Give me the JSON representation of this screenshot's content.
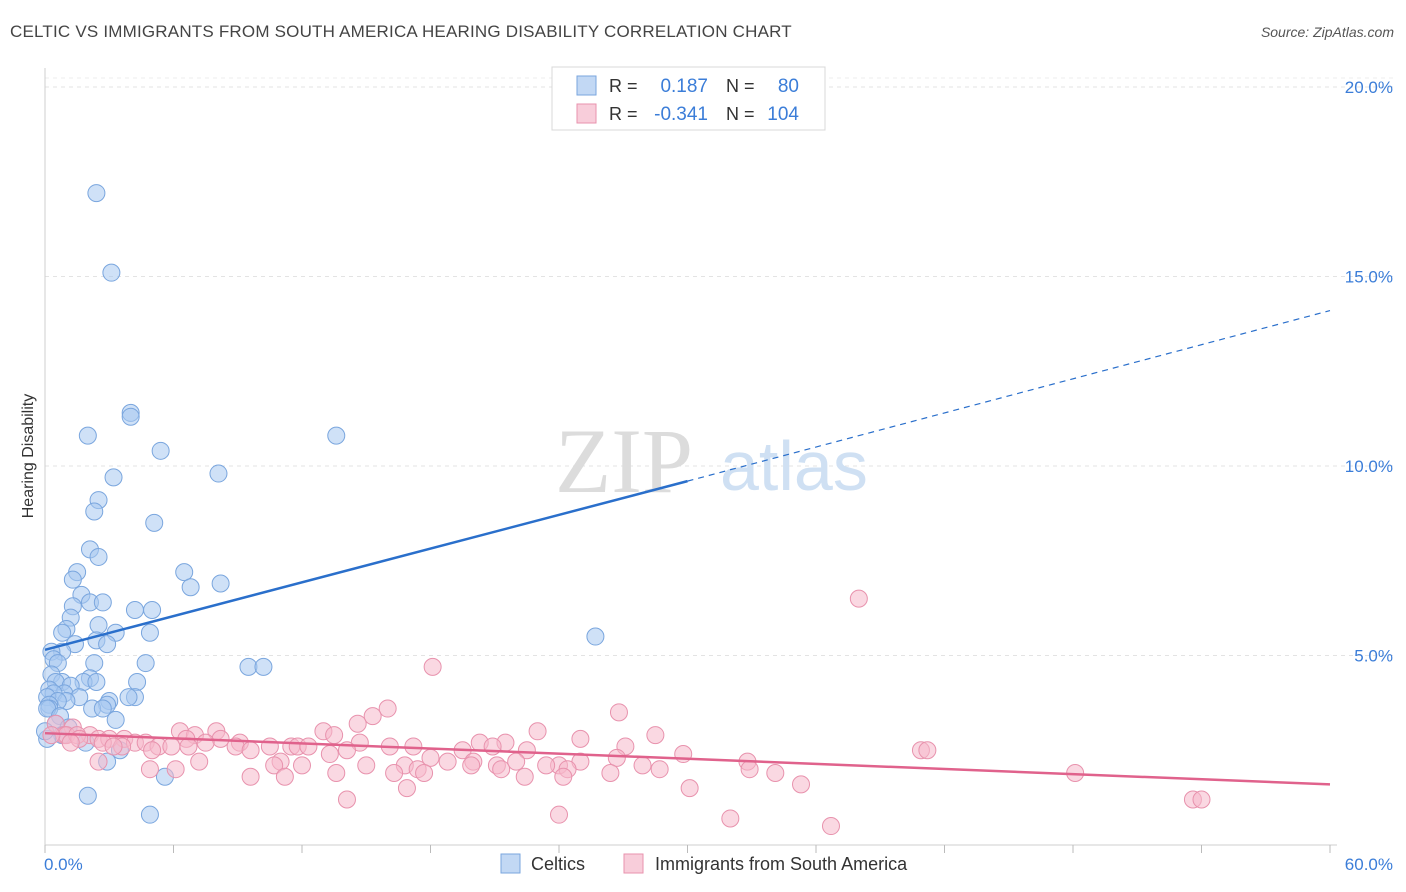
{
  "chart_data": {
    "type": "scatter",
    "title": "CELTIC VS IMMIGRANTS FROM SOUTH AMERICA HEARING DISABILITY CORRELATION CHART",
    "source": "Source: ZipAtlas.com",
    "ylabel": "Hearing Disability",
    "xlabel": "",
    "xlim": [
      0,
      60
    ],
    "ylim": [
      0,
      20.5
    ],
    "x_tick_labels": [
      "0.0%",
      "60.0%"
    ],
    "y_ticks": [
      5,
      10,
      15,
      20
    ],
    "y_tick_labels": [
      "5.0%",
      "10.0%",
      "15.0%",
      "20.0%"
    ],
    "grid": true,
    "watermark": {
      "zip": "ZIP",
      "atlas": "atlas"
    },
    "legend_top": [
      {
        "r_label": "R =",
        "r_value": "0.187",
        "n_label": "N =",
        "n_value": "80",
        "color": "#a8c8f0"
      },
      {
        "r_label": "R =",
        "r_value": "-0.341",
        "n_label": "N =",
        "n_value": "104",
        "color": "#f5b8cb"
      }
    ],
    "series": [
      {
        "name": "Celtics",
        "color": "#a8c8f0",
        "stroke": "#7aa6de",
        "trend_color": "#2a6fcb",
        "trend": {
          "x0": 0,
          "y0": 5.15,
          "x1": 30,
          "y1": 9.6,
          "x_end": 60,
          "y_end": 14.1
        },
        "points": [
          [
            2.4,
            17.2
          ],
          [
            3.1,
            15.1
          ],
          [
            4.0,
            11.4
          ],
          [
            4.0,
            11.3
          ],
          [
            2.0,
            10.8
          ],
          [
            13.6,
            10.8
          ],
          [
            5.4,
            10.4
          ],
          [
            8.1,
            9.8
          ],
          [
            3.2,
            9.7
          ],
          [
            2.5,
            9.1
          ],
          [
            2.3,
            8.8
          ],
          [
            5.1,
            8.5
          ],
          [
            2.1,
            7.8
          ],
          [
            2.5,
            7.6
          ],
          [
            1.5,
            7.2
          ],
          [
            6.5,
            7.2
          ],
          [
            1.3,
            7.0
          ],
          [
            8.2,
            6.9
          ],
          [
            6.8,
            6.8
          ],
          [
            1.7,
            6.6
          ],
          [
            2.1,
            6.4
          ],
          [
            2.7,
            6.4
          ],
          [
            1.3,
            6.3
          ],
          [
            4.2,
            6.2
          ],
          [
            5.0,
            6.2
          ],
          [
            1.2,
            6.0
          ],
          [
            2.5,
            5.8
          ],
          [
            1.0,
            5.7
          ],
          [
            0.8,
            5.6
          ],
          [
            3.3,
            5.6
          ],
          [
            4.9,
            5.6
          ],
          [
            25.7,
            5.5
          ],
          [
            2.4,
            5.4
          ],
          [
            2.9,
            5.3
          ],
          [
            1.4,
            5.3
          ],
          [
            0.8,
            5.1
          ],
          [
            0.3,
            5.1
          ],
          [
            0.4,
            4.9
          ],
          [
            0.6,
            4.8
          ],
          [
            4.7,
            4.8
          ],
          [
            2.3,
            4.8
          ],
          [
            9.5,
            4.7
          ],
          [
            10.2,
            4.7
          ],
          [
            0.3,
            4.5
          ],
          [
            2.1,
            4.4
          ],
          [
            0.8,
            4.3
          ],
          [
            0.5,
            4.3
          ],
          [
            1.8,
            4.3
          ],
          [
            4.3,
            4.3
          ],
          [
            2.4,
            4.3
          ],
          [
            1.2,
            4.2
          ],
          [
            0.2,
            4.1
          ],
          [
            0.9,
            4.0
          ],
          [
            0.4,
            4.0
          ],
          [
            0.1,
            3.9
          ],
          [
            4.2,
            3.9
          ],
          [
            3.9,
            3.9
          ],
          [
            1.6,
            3.9
          ],
          [
            1.0,
            3.8
          ],
          [
            0.6,
            3.8
          ],
          [
            3.0,
            3.8
          ],
          [
            2.9,
            3.7
          ],
          [
            0.2,
            3.7
          ],
          [
            0.2,
            3.6
          ],
          [
            0.1,
            3.6
          ],
          [
            2.2,
            3.6
          ],
          [
            2.7,
            3.6
          ],
          [
            0.7,
            3.4
          ],
          [
            3.3,
            3.3
          ],
          [
            0.5,
            3.2
          ],
          [
            1.1,
            3.1
          ],
          [
            0.8,
            2.9
          ],
          [
            0.1,
            2.8
          ],
          [
            1.9,
            2.7
          ],
          [
            3.5,
            2.5
          ],
          [
            2.9,
            2.2
          ],
          [
            5.6,
            1.8
          ],
          [
            2.0,
            1.3
          ],
          [
            4.9,
            0.8
          ],
          [
            0.0,
            3.0
          ]
        ]
      },
      {
        "name": "Immigrants from South America",
        "color": "#f5b8cb",
        "stroke": "#e892ad",
        "trend_color": "#e0628c",
        "trend": {
          "x0": 0,
          "y0": 2.95,
          "x1": 60,
          "y1": 1.6,
          "x_end": 60,
          "y_end": 1.6
        },
        "points": [
          [
            38.0,
            6.5
          ],
          [
            18.1,
            4.7
          ],
          [
            16.0,
            3.6
          ],
          [
            26.8,
            3.5
          ],
          [
            15.3,
            3.4
          ],
          [
            14.6,
            3.2
          ],
          [
            0.5,
            3.2
          ],
          [
            1.3,
            3.1
          ],
          [
            6.3,
            3.0
          ],
          [
            13.0,
            3.0
          ],
          [
            8.0,
            3.0
          ],
          [
            23.0,
            3.0
          ],
          [
            28.5,
            2.9
          ],
          [
            0.9,
            2.9
          ],
          [
            1.0,
            2.9
          ],
          [
            7.0,
            2.9
          ],
          [
            13.5,
            2.9
          ],
          [
            2.1,
            2.9
          ],
          [
            0.3,
            2.9
          ],
          [
            1.5,
            2.9
          ],
          [
            1.6,
            2.8
          ],
          [
            2.5,
            2.8
          ],
          [
            3.0,
            2.8
          ],
          [
            3.7,
            2.8
          ],
          [
            8.2,
            2.8
          ],
          [
            6.6,
            2.8
          ],
          [
            25.0,
            2.8
          ],
          [
            2.7,
            2.7
          ],
          [
            1.2,
            2.7
          ],
          [
            4.2,
            2.7
          ],
          [
            4.7,
            2.7
          ],
          [
            7.5,
            2.7
          ],
          [
            9.1,
            2.7
          ],
          [
            14.7,
            2.7
          ],
          [
            20.3,
            2.7
          ],
          [
            21.5,
            2.7
          ],
          [
            3.6,
            2.6
          ],
          [
            5.3,
            2.6
          ],
          [
            5.9,
            2.6
          ],
          [
            11.5,
            2.6
          ],
          [
            11.8,
            2.6
          ],
          [
            10.5,
            2.6
          ],
          [
            16.1,
            2.6
          ],
          [
            20.9,
            2.6
          ],
          [
            27.1,
            2.6
          ],
          [
            3.2,
            2.6
          ],
          [
            6.7,
            2.6
          ],
          [
            8.9,
            2.6
          ],
          [
            12.3,
            2.6
          ],
          [
            17.2,
            2.6
          ],
          [
            22.5,
            2.5
          ],
          [
            5.0,
            2.5
          ],
          [
            9.6,
            2.5
          ],
          [
            14.1,
            2.5
          ],
          [
            19.5,
            2.5
          ],
          [
            40.9,
            2.5
          ],
          [
            41.2,
            2.5
          ],
          [
            13.3,
            2.4
          ],
          [
            29.8,
            2.4
          ],
          [
            18.0,
            2.3
          ],
          [
            26.7,
            2.3
          ],
          [
            32.8,
            2.2
          ],
          [
            25.0,
            2.2
          ],
          [
            2.5,
            2.2
          ],
          [
            18.8,
            2.2
          ],
          [
            22.0,
            2.2
          ],
          [
            7.2,
            2.2
          ],
          [
            11.0,
            2.2
          ],
          [
            20.0,
            2.2
          ],
          [
            21.1,
            2.1
          ],
          [
            24.0,
            2.1
          ],
          [
            27.9,
            2.1
          ],
          [
            10.7,
            2.1
          ],
          [
            12.0,
            2.1
          ],
          [
            15.0,
            2.1
          ],
          [
            16.8,
            2.1
          ],
          [
            19.9,
            2.1
          ],
          [
            23.4,
            2.1
          ],
          [
            6.1,
            2.0
          ],
          [
            4.9,
            2.0
          ],
          [
            17.4,
            2.0
          ],
          [
            21.3,
            2.0
          ],
          [
            24.4,
            2.0
          ],
          [
            28.7,
            2.0
          ],
          [
            32.9,
            2.0
          ],
          [
            13.6,
            1.9
          ],
          [
            16.3,
            1.9
          ],
          [
            17.7,
            1.9
          ],
          [
            34.1,
            1.9
          ],
          [
            26.4,
            1.9
          ],
          [
            48.1,
            1.9
          ],
          [
            9.6,
            1.8
          ],
          [
            11.2,
            1.8
          ],
          [
            22.4,
            1.8
          ],
          [
            24.2,
            1.8
          ],
          [
            35.3,
            1.6
          ],
          [
            16.9,
            1.5
          ],
          [
            30.1,
            1.5
          ],
          [
            14.1,
            1.2
          ],
          [
            53.6,
            1.2
          ],
          [
            54.0,
            1.2
          ],
          [
            24.0,
            0.8
          ],
          [
            32.0,
            0.7
          ],
          [
            36.7,
            0.5
          ]
        ]
      }
    ],
    "legend_bottom": [
      "Celtics",
      "Immigrants from South America"
    ]
  }
}
